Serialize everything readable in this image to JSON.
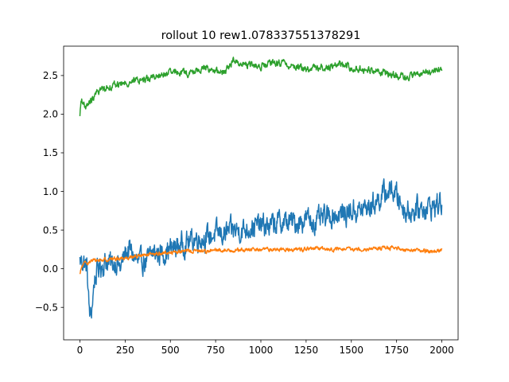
{
  "chart_data": {
    "type": "line",
    "title": "rollout 10 rew1.078337551378291",
    "xlabel": "",
    "ylabel": "",
    "xlim": [
      -90,
      2090
    ],
    "ylim": [
      -0.92,
      2.88
    ],
    "xticks": [
      0,
      250,
      500,
      750,
      1000,
      1250,
      1500,
      1750,
      2000
    ],
    "xtick_labels": [
      "0",
      "250",
      "500",
      "750",
      "1000",
      "1250",
      "1500",
      "1750",
      "2000"
    ],
    "yticks": [
      -0.5,
      0.0,
      0.5,
      1.0,
      1.5,
      2.0,
      2.5
    ],
    "ytick_labels": [
      "−0.5",
      "0.0",
      "0.5",
      "1.0",
      "1.5",
      "2.0",
      "2.5"
    ],
    "grid": false,
    "legend": "none",
    "series": [
      {
        "color": "#1f77b4",
        "noise": 0.12,
        "x": [
          0,
          20,
          40,
          50,
          60,
          70,
          80,
          100,
          120,
          150,
          175,
          200,
          225,
          250,
          275,
          300,
          325,
          350,
          375,
          400,
          450,
          500,
          550,
          600,
          650,
          700,
          750,
          800,
          850,
          900,
          950,
          1000,
          1050,
          1100,
          1150,
          1200,
          1250,
          1300,
          1350,
          1400,
          1450,
          1500,
          1550,
          1600,
          1650,
          1700,
          1725,
          1750,
          1775,
          1800,
          1850,
          1900,
          1950,
          2000
        ],
        "y": [
          0.1,
          0.1,
          0.0,
          -0.5,
          -0.65,
          -0.4,
          -0.15,
          0.0,
          0.05,
          0.1,
          0.05,
          0.1,
          0.0,
          0.2,
          0.25,
          0.15,
          0.05,
          0.1,
          0.1,
          0.2,
          0.2,
          0.25,
          0.3,
          0.35,
          0.4,
          0.4,
          0.45,
          0.45,
          0.5,
          0.5,
          0.55,
          0.55,
          0.55,
          0.6,
          0.6,
          0.6,
          0.65,
          0.6,
          0.65,
          0.7,
          0.7,
          0.75,
          0.75,
          0.8,
          0.9,
          1.0,
          1.02,
          0.95,
          0.85,
          0.75,
          0.75,
          0.8,
          0.8,
          0.85
        ]
      },
      {
        "color": "#ff7f0e",
        "noise": 0.02,
        "x": [
          0,
          10,
          20,
          40,
          60,
          100,
          150,
          200,
          250,
          300,
          350,
          400,
          450,
          500,
          550,
          600,
          700,
          800,
          900,
          1000,
          1100,
          1200,
          1300,
          1400,
          1500,
          1600,
          1700,
          1750,
          1800,
          1850,
          1900,
          1950,
          2000
        ],
        "y": [
          -0.08,
          0.02,
          0.06,
          0.08,
          0.1,
          0.11,
          0.12,
          0.13,
          0.14,
          0.16,
          0.17,
          0.18,
          0.2,
          0.21,
          0.22,
          0.23,
          0.23,
          0.24,
          0.24,
          0.25,
          0.25,
          0.25,
          0.26,
          0.25,
          0.25,
          0.26,
          0.27,
          0.26,
          0.25,
          0.24,
          0.23,
          0.23,
          0.24
        ]
      },
      {
        "color": "#2ca02c",
        "noise": 0.035,
        "x": [
          0,
          5,
          10,
          20,
          30,
          50,
          75,
          100,
          150,
          200,
          250,
          300,
          350,
          400,
          450,
          500,
          550,
          600,
          650,
          700,
          750,
          800,
          825,
          850,
          900,
          950,
          1000,
          1050,
          1100,
          1150,
          1200,
          1250,
          1300,
          1350,
          1400,
          1450,
          1500,
          1550,
          1600,
          1650,
          1700,
          1750,
          1800,
          1850,
          1900,
          1950,
          2000
        ],
        "y": [
          1.95,
          2.15,
          2.2,
          2.15,
          2.05,
          2.15,
          2.2,
          2.3,
          2.35,
          2.38,
          2.4,
          2.43,
          2.45,
          2.48,
          2.5,
          2.53,
          2.55,
          2.52,
          2.57,
          2.6,
          2.55,
          2.55,
          2.62,
          2.7,
          2.65,
          2.63,
          2.62,
          2.65,
          2.67,
          2.63,
          2.62,
          2.58,
          2.6,
          2.6,
          2.63,
          2.65,
          2.6,
          2.58,
          2.57,
          2.55,
          2.53,
          2.5,
          2.48,
          2.5,
          2.55,
          2.55,
          2.58
        ]
      }
    ]
  }
}
